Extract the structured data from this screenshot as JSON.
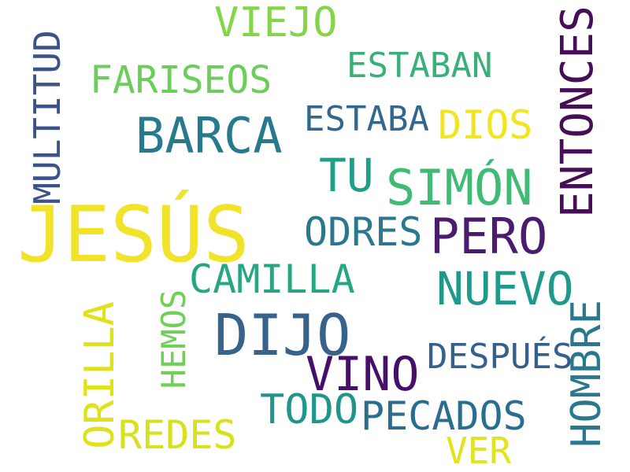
{
  "cloud": {
    "background": "#ffffff",
    "words": [
      {
        "id": "jesus",
        "text": "JESÚS",
        "color": "#f0e32a",
        "orientation": "horizontal"
      },
      {
        "id": "dijo",
        "text": "DIJO",
        "color": "#37628a",
        "orientation": "horizontal"
      },
      {
        "id": "barca",
        "text": "BARCA",
        "color": "#277a8e",
        "orientation": "horizontal"
      },
      {
        "id": "simon",
        "text": "SIMÓN",
        "color": "#3fbb75",
        "orientation": "horizontal"
      },
      {
        "id": "pero",
        "text": "PERO",
        "color": "#4a1c6e",
        "orientation": "horizontal"
      },
      {
        "id": "vino",
        "text": "VINO",
        "color": "#46106a",
        "orientation": "horizontal"
      },
      {
        "id": "nuevo",
        "text": "NUEVO",
        "color": "#1f9a8a",
        "orientation": "horizontal"
      },
      {
        "id": "tu",
        "text": "TU",
        "color": "#1f9e89",
        "orientation": "horizontal"
      },
      {
        "id": "viejo",
        "text": "VIEJO",
        "color": "#86d549",
        "orientation": "horizontal"
      },
      {
        "id": "fariseos",
        "text": "FARISEOS",
        "color": "#6ccd5a",
        "orientation": "horizontal"
      },
      {
        "id": "camilla",
        "text": "CAMILLA",
        "color": "#26a784",
        "orientation": "horizontal"
      },
      {
        "id": "odres",
        "text": "ODRES",
        "color": "#2a788e",
        "orientation": "horizontal"
      },
      {
        "id": "pecados",
        "text": "PECADOS",
        "color": "#2b6d8e",
        "orientation": "horizontal"
      },
      {
        "id": "todo",
        "text": "TODO",
        "color": "#20968a",
        "orientation": "horizontal"
      },
      {
        "id": "redes",
        "text": "REDES",
        "color": "#d8e21a",
        "orientation": "horizontal"
      },
      {
        "id": "dios",
        "text": "DIOS",
        "color": "#f2e51d",
        "orientation": "horizontal"
      },
      {
        "id": "estaban",
        "text": "ESTABAN",
        "color": "#3aaf78",
        "orientation": "horizontal"
      },
      {
        "id": "estaba",
        "text": "ESTABA",
        "color": "#33678d",
        "orientation": "horizontal"
      },
      {
        "id": "despues",
        "text": "DESPUÉS",
        "color": "#35608d",
        "orientation": "horizontal"
      },
      {
        "id": "ver",
        "text": "VER",
        "color": "#e1e31b",
        "orientation": "horizontal"
      },
      {
        "id": "multitud",
        "text": "MULTITUD",
        "color": "#3b528b",
        "orientation": "vertical"
      },
      {
        "id": "entonces",
        "text": "ENTONCES",
        "color": "#440f55",
        "orientation": "vertical"
      },
      {
        "id": "orilla",
        "text": "ORILLA",
        "color": "#dde318",
        "orientation": "vertical"
      },
      {
        "id": "hemos",
        "text": "HEMOS",
        "color": "#6fcf57",
        "orientation": "vertical"
      },
      {
        "id": "hombre",
        "text": "HOMBRE",
        "color": "#2a788e",
        "orientation": "vertical"
      }
    ]
  }
}
